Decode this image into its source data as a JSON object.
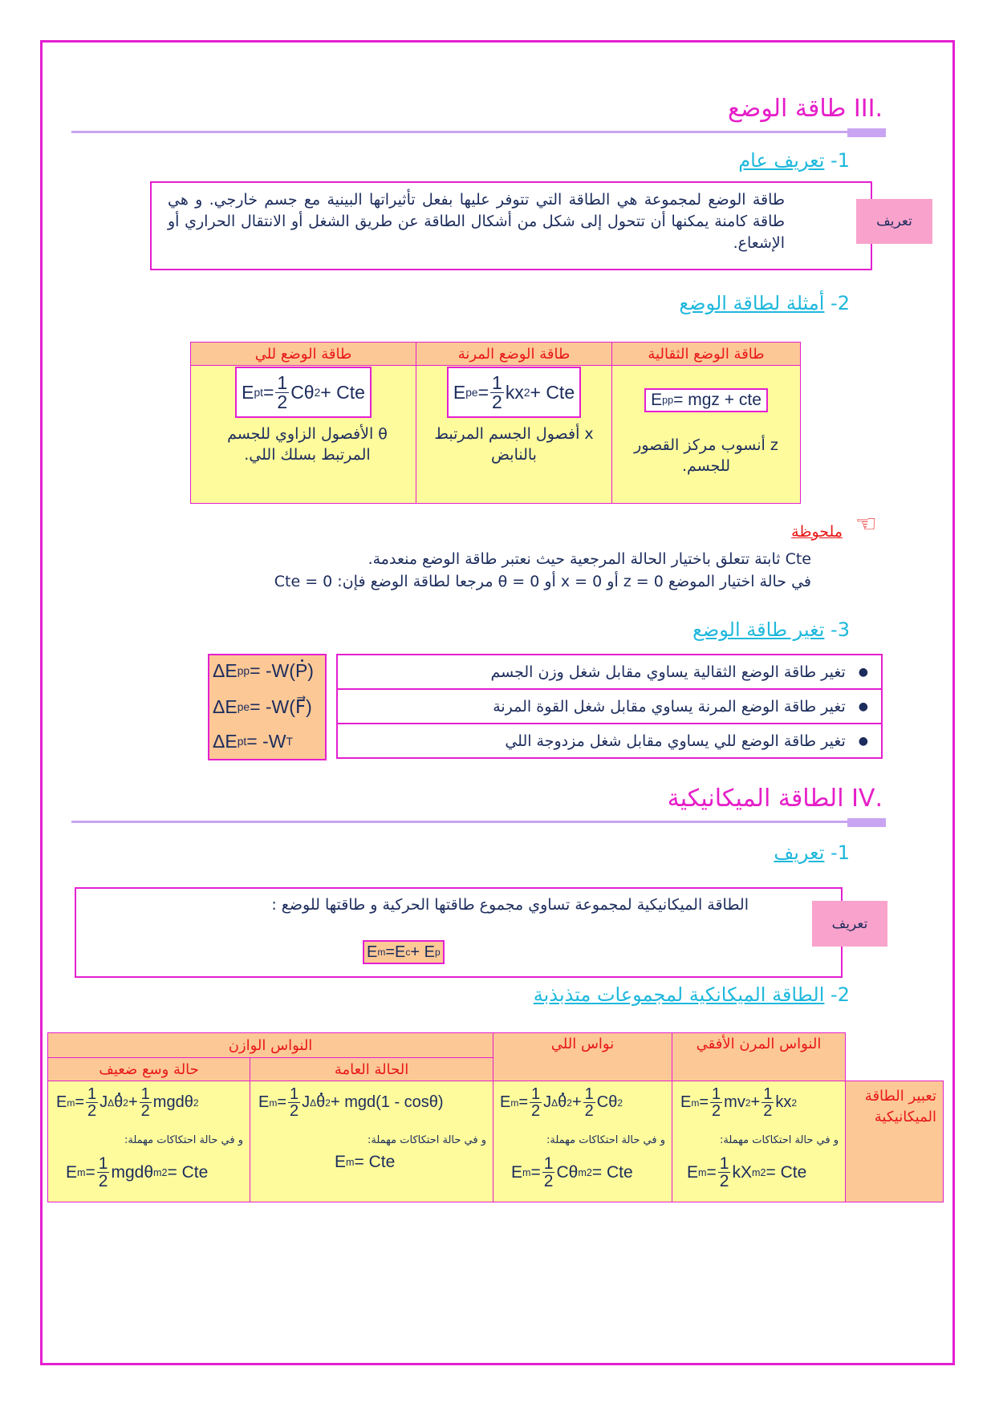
{
  "section3": {
    "title": ".III  طاقة الوضع",
    "sub1": {
      "num": "1- ",
      "label": "تعريف عام"
    },
    "definition_label": "تعريف",
    "definition_text": "طاقة الوضع لمجموعة هي الطاقة التي تتوفر عليها بفعل تأثيراتها البينية مع جسم خارجي. و هي طاقة كامنة يمكنها أن تتحول إلى شكل من أشكال الطاقة عن طريق الشغل أو الانتقال الحراري أو الإشعاع.",
    "sub2": {
      "num": "2- ",
      "label": "أمثلة لطاقة الوضع"
    },
    "examples_table": {
      "columns": [
        {
          "header": "طاقة الوضع الثقالية",
          "formula": [
            "E",
            {
              "sub": "pp"
            },
            " = mgz + cte"
          ],
          "description": "z أنسوب مركز القصور للجسم."
        },
        {
          "header": "طاقة الوضع المرنة",
          "formula": [
            "E",
            {
              "sub": "pe"
            },
            " = ",
            {
              "frac": [
                "1",
                "2"
              ]
            },
            "kx",
            {
              "sup": "2"
            },
            " + Cte"
          ],
          "description": "x  أفصول الجسم المرتبط بالنابض"
        },
        {
          "header": "طاقة الوضع للي",
          "formula": [
            "E",
            {
              "sub": "pt"
            },
            " = ",
            {
              "frac": [
                "1",
                "2"
              ]
            },
            "Cθ",
            {
              "sup": "2"
            },
            " + Cte"
          ],
          "description": "θ الأفصول الزاوي للجسم المرتبط بسلك اللي."
        }
      ]
    },
    "note": {
      "icon": "pointing-hand-icon",
      "title": "ملحوظة",
      "line1": "Cte ثابتة تتعلق باختيار الحالة المرجعية حيث نعتبر طاقة الوضع منعدمة.",
      "line2": "في حالة اختيار الموضع z = 0  أو  x = 0  أو  θ = 0 مرجعا لطاقة الوضع فإن: Cte = 0"
    },
    "sub3": {
      "num": "3- ",
      "label": "تغير طاقة الوضع"
    },
    "variation": {
      "items": [
        "تغير طاقة الوضع الثقالية يساوي مقابل شغل وزن الجسم",
        "تغير طاقة الوضع المرنة يساوي مقابل شغل القوة المرنة",
        "تغير طاقة الوضع للي يساوي مقابل شغل مزدوجة اللي"
      ],
      "formulas": [
        [
          "ΔE",
          {
            "sub": "pp"
          },
          " = -W(",
          {
            "dot": "P"
          },
          ")"
        ],
        [
          "ΔE",
          {
            "sub": "pe"
          },
          " = -W(F⃗)"
        ],
        [
          "ΔE",
          {
            "sub": "pt"
          },
          " = -W",
          {
            "sub": "T"
          }
        ]
      ]
    }
  },
  "section4": {
    "title": ".IV  الطاقة الميكانيكية",
    "sub1": {
      "num": "1- ",
      "label": "تعريف"
    },
    "definition_label": "تعريف",
    "definition_text": "الطاقة الميكانيكية لمجموعة تساوي مجموع طاقتها الحركية و طاقتها للوضع :",
    "definition_formula": [
      "E",
      {
        "sub": "m"
      },
      " =E",
      {
        "sub": "c"
      },
      " + E",
      {
        "sub": "p"
      }
    ],
    "sub2": {
      "num": "2- ",
      "label": "الطاقة الميكانكية لمجموعات متذبذبة"
    },
    "oscillators_table": {
      "row_label": "تعبير الطاقة الميكانيكية",
      "group_header": "النواس الوازن",
      "friction_note": "و في حالة احتكاكات مهملة:",
      "columns": [
        {
          "header": "النواس المرن الأفقي",
          "formula": [
            "E",
            {
              "sub": "m"
            },
            " = ",
            {
              "frac": [
                "1",
                "2"
              ]
            },
            "mv",
            {
              "sup": "2"
            },
            " + ",
            {
              "frac": [
                "1",
                "2"
              ]
            },
            "kx",
            {
              "sup": "2"
            }
          ],
          "conserved": [
            "E",
            {
              "sub": "m"
            },
            " = ",
            {
              "frac": [
                "1",
                "2"
              ]
            },
            "kX",
            {
              "sub": "m"
            },
            {
              "sup": "2"
            },
            " = Cte"
          ]
        },
        {
          "header": "نواس اللي",
          "formula": [
            "E",
            {
              "sub": "m"
            },
            " = ",
            {
              "frac": [
                "1",
                "2"
              ]
            },
            "J",
            {
              "sub": "Δ"
            },
            {
              "dot": "θ"
            },
            {
              "sup": "2"
            },
            " + ",
            {
              "frac": [
                "1",
                "2"
              ]
            },
            "Cθ",
            {
              "sup": "2"
            }
          ],
          "conserved": [
            "E",
            {
              "sub": "m"
            },
            " = ",
            {
              "frac": [
                "1",
                "2"
              ]
            },
            "Cθ",
            {
              "sub": "m"
            },
            {
              "sup": "2"
            },
            " = Cte"
          ]
        },
        {
          "header": "الحالة العامة",
          "formula": [
            "E",
            {
              "sub": "m"
            },
            " = ",
            {
              "frac": [
                "1",
                "2"
              ]
            },
            "J",
            {
              "sub": "Δ"
            },
            {
              "dot": "θ"
            },
            {
              "sup": "2"
            },
            " + mgd(1 - cosθ)"
          ],
          "conserved": [
            "E",
            {
              "sub": "m"
            },
            " = Cte"
          ]
        },
        {
          "header": "حالة وسع ضعيف",
          "formula": [
            "E",
            {
              "sub": "m"
            },
            " = ",
            {
              "frac": [
                "1",
                "2"
              ]
            },
            "J",
            {
              "sub": "Δ"
            },
            {
              "dot": "θ"
            },
            {
              "sup": "2"
            },
            " + ",
            {
              "frac": [
                "1",
                "2"
              ]
            },
            "mgdθ",
            {
              "sup": "2"
            }
          ],
          "conserved": [
            "E",
            {
              "sub": "m"
            },
            " = ",
            {
              "frac": [
                "1",
                "2"
              ]
            },
            "mgdθ",
            {
              "sub": "m"
            },
            {
              "sup": "2"
            },
            " = Cte"
          ]
        }
      ]
    }
  },
  "colors": {
    "border": "#e41fd0",
    "title": "#e61ec8",
    "subheading": "#1fb8dc",
    "header_cell": "#fcc896",
    "body_cell": "#fdfb9c",
    "label_pink": "#f9a2cc",
    "header_text": "#e81818",
    "text": "#1c2c5c"
  }
}
